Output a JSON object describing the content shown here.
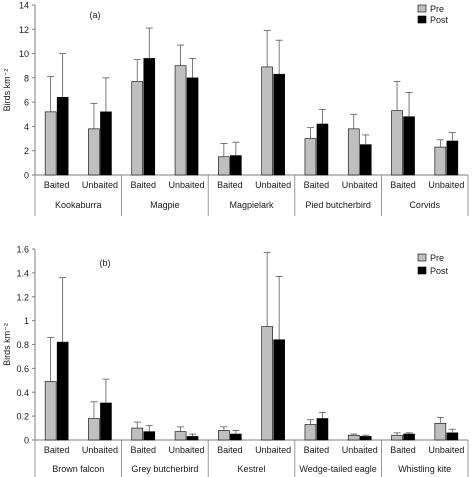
{
  "colors": {
    "pre": "#bfbfbf",
    "post": "#000000",
    "axis": "#7f7f7f"
  },
  "chart_data": [
    {
      "type": "bar",
      "panel_label": "(a)",
      "ylabel": "Birds km⁻²",
      "ylim": [
        0,
        14
      ],
      "yticks": [
        "0",
        "2",
        "4",
        "6",
        "8",
        "10",
        "12",
        "14"
      ],
      "legend": [
        "Pre",
        "Post"
      ],
      "legend_position": "top-right",
      "error_bars": true,
      "groups": [
        "Kookaburra",
        "Magpie",
        "Magpielark",
        "Pied butcherbird",
        "Corvids"
      ],
      "categories": [
        "Baited",
        "Unbaited",
        "Baited",
        "Unbaited",
        "Baited",
        "Unbaited",
        "Baited",
        "Unbaited",
        "Baited",
        "Unbaited"
      ],
      "series": [
        {
          "name": "Pre",
          "values": [
            5.2,
            3.8,
            7.7,
            9.0,
            1.5,
            8.9,
            3.0,
            3.8,
            5.3,
            2.3
          ],
          "errors": [
            2.9,
            2.1,
            1.8,
            1.7,
            1.1,
            3.0,
            0.9,
            1.2,
            2.4,
            0.6
          ]
        },
        {
          "name": "Post",
          "values": [
            6.4,
            5.2,
            9.6,
            8.0,
            1.6,
            8.3,
            4.2,
            2.5,
            4.8,
            2.8
          ],
          "errors": [
            3.6,
            2.8,
            2.5,
            1.6,
            1.1,
            2.8,
            1.2,
            0.8,
            2.0,
            0.7
          ]
        }
      ]
    },
    {
      "type": "bar",
      "panel_label": "(b)",
      "ylabel": "Birds km⁻²",
      "ylim": [
        0,
        1.6
      ],
      "yticks": [
        "0",
        "0.2",
        "0.4",
        "0.6",
        "0.8",
        "1",
        "1.2",
        "1.4",
        "1.6"
      ],
      "legend": [
        "Pre",
        "Post"
      ],
      "legend_position": "top-right",
      "error_bars": true,
      "groups": [
        "Brown falcon",
        "Grey butcherbird",
        "Kestrel",
        "Wedge-tailed eagle",
        "Whistling kite"
      ],
      "categories": [
        "Baited",
        "Unbaited",
        "Baited",
        "Unbaited",
        "Baited",
        "Unbaited",
        "Baited",
        "Unbaited",
        "Baited",
        "Unbaited"
      ],
      "series": [
        {
          "name": "Pre",
          "values": [
            0.49,
            0.18,
            0.1,
            0.07,
            0.08,
            0.95,
            0.13,
            0.04,
            0.04,
            0.14
          ],
          "errors": [
            0.37,
            0.14,
            0.05,
            0.04,
            0.03,
            0.62,
            0.04,
            0.01,
            0.02,
            0.05
          ]
        },
        {
          "name": "Post",
          "values": [
            0.82,
            0.31,
            0.07,
            0.03,
            0.05,
            0.84,
            0.18,
            0.03,
            0.05,
            0.06
          ],
          "errors": [
            0.54,
            0.2,
            0.05,
            0.02,
            0.03,
            0.53,
            0.05,
            0.01,
            0.01,
            0.03
          ]
        }
      ]
    }
  ]
}
